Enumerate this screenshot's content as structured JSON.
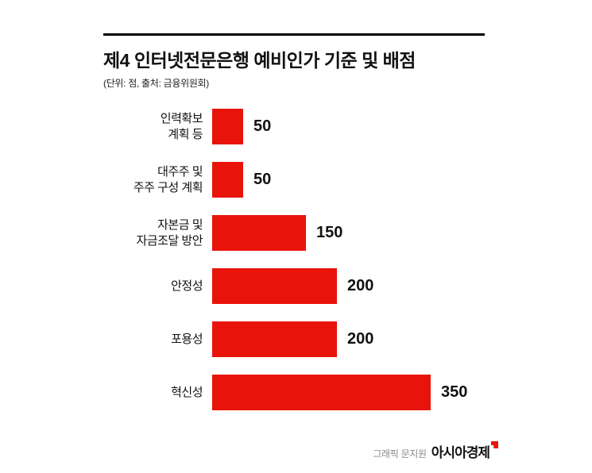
{
  "title": "제4 인터넷전문은행 예비인가 기준 및 배점",
  "subtitle": "(단위: 점, 출처: 금융위원회)",
  "footer": {
    "credit": "그래픽 문지원",
    "brand": "아시아경제"
  },
  "colors": {
    "bar": "#e8140c",
    "logo_mark": "#e8140c"
  },
  "chart_data": {
    "type": "bar",
    "orientation": "horizontal",
    "title": "제4 인터넷전문은행 예비인가 기준 및 배점",
    "unit_note": "(단위: 점, 출처: 금융위원회)",
    "categories": [
      "인력확보\n계획 등",
      "대주주 및\n주주 구성 계획",
      "자본금 및\n자금조달 방안",
      "안정성",
      "포용성",
      "혁신성"
    ],
    "values": [
      50,
      50,
      150,
      200,
      200,
      350
    ],
    "xlim": [
      0,
      350
    ],
    "bar_color": "#e8140c",
    "value_labels": true,
    "grid": false,
    "legend": false
  }
}
